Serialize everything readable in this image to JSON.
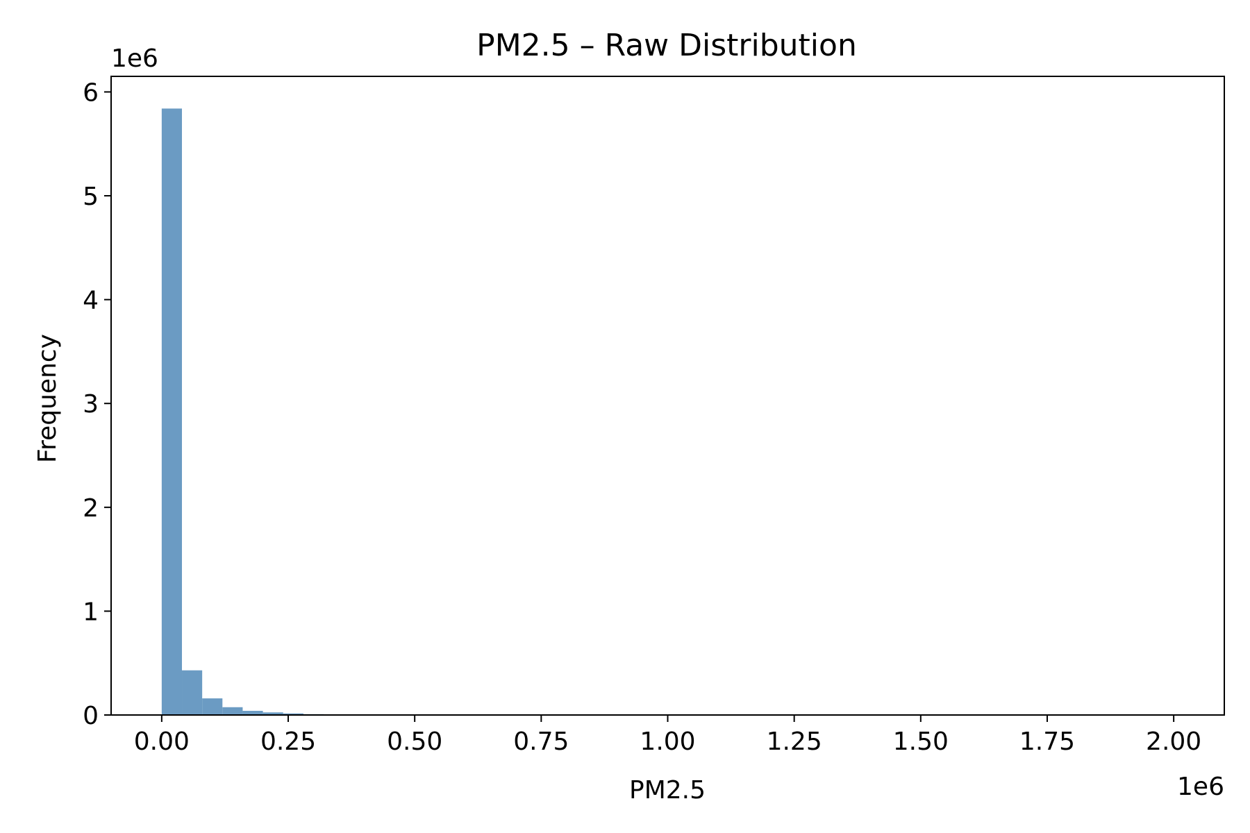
{
  "chart_data": {
    "type": "bar",
    "title": "PM2.5 – Raw Distribution",
    "xlabel": "PM2.5",
    "ylabel": "Frequency",
    "x_offset_label": "1e6",
    "y_offset_label": "1e6",
    "xlim": [
      -100000,
      2100000
    ],
    "ylim": [
      0,
      6150000
    ],
    "x_ticks": [
      0,
      250000,
      500000,
      750000,
      1000000,
      1250000,
      1500000,
      1750000,
      2000000
    ],
    "x_tick_labels": [
      "0.00",
      "0.25",
      "0.50",
      "0.75",
      "1.00",
      "1.25",
      "1.50",
      "1.75",
      "2.00"
    ],
    "y_ticks": [
      0,
      1000000,
      2000000,
      3000000,
      4000000,
      5000000,
      6000000
    ],
    "y_tick_labels": [
      "0",
      "1",
      "2",
      "3",
      "4",
      "5",
      "6"
    ],
    "bin_start": 0,
    "bin_width": 40000,
    "values": [
      5840000,
      430000,
      160000,
      75000,
      40000,
      25000,
      15000,
      8000,
      0,
      0,
      0,
      0,
      0,
      0,
      0,
      0,
      0,
      0,
      0,
      0,
      0,
      0,
      0,
      0,
      0,
      0,
      0,
      0,
      0,
      0,
      0,
      0,
      0,
      0,
      0,
      0,
      0,
      0,
      0,
      0,
      0,
      0,
      0,
      0,
      0,
      0,
      0,
      0,
      0,
      0
    ],
    "bar_color": "#6b9bc3",
    "grid": false,
    "legend": "none"
  }
}
